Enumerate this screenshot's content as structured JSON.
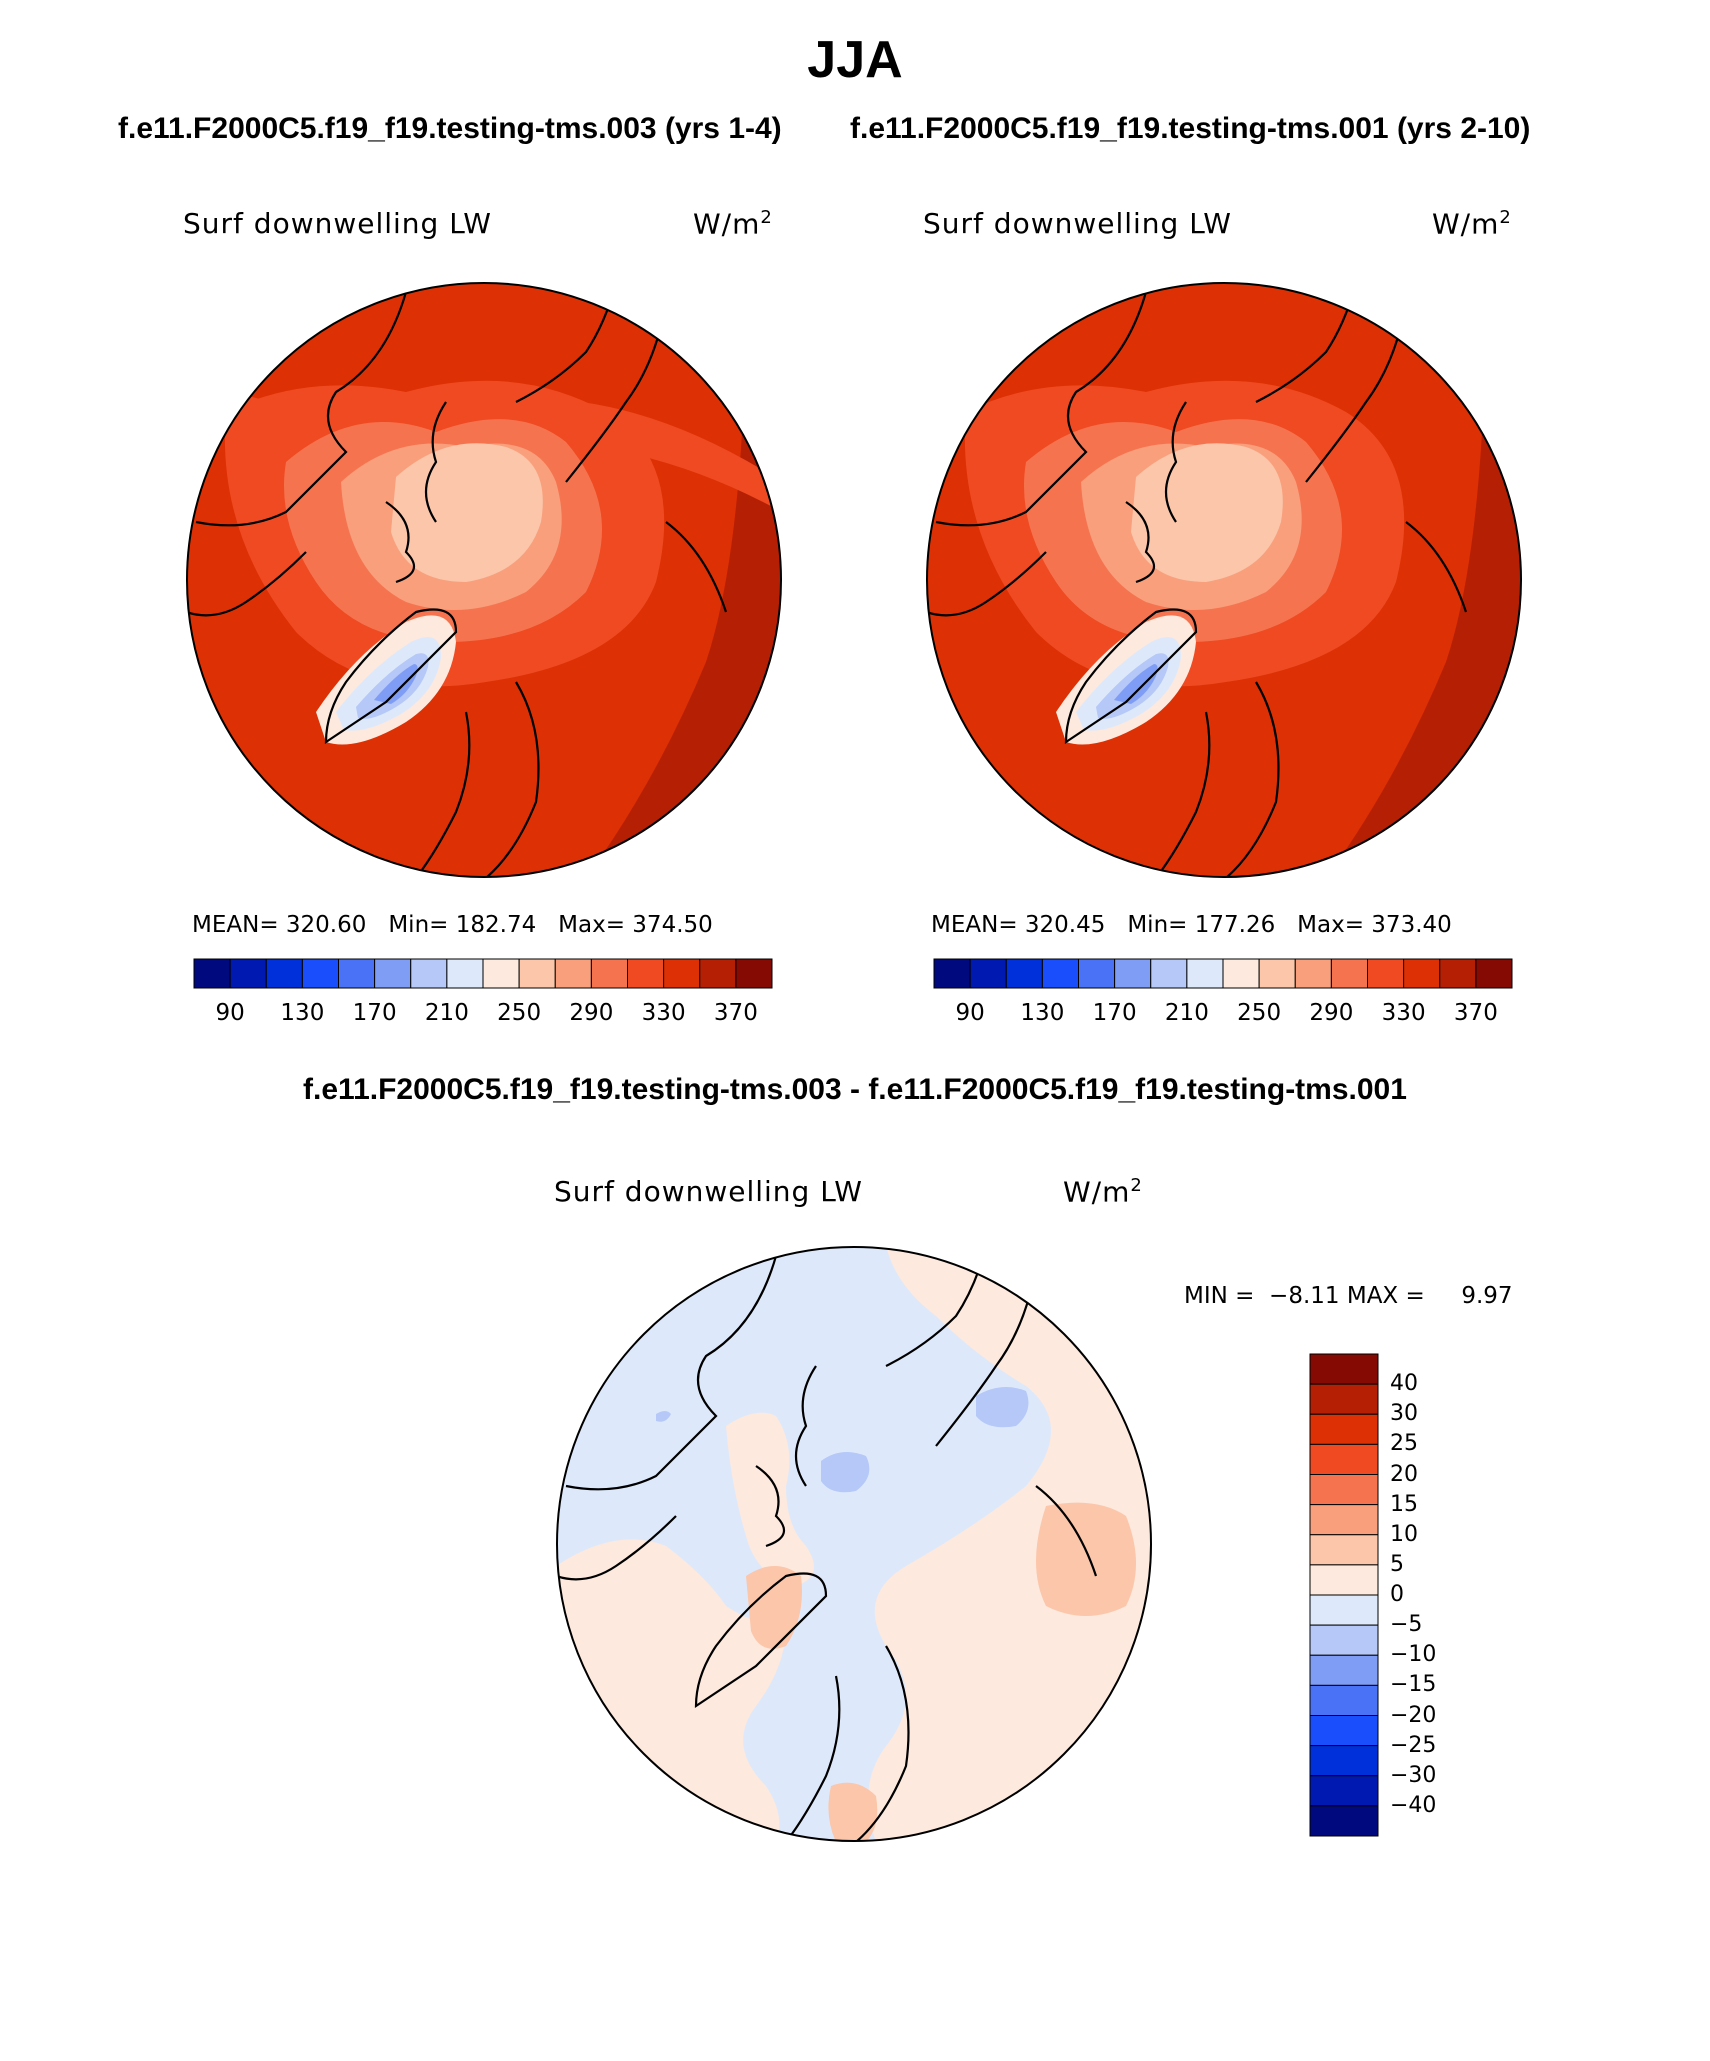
{
  "title": "JJA",
  "panels": [
    {
      "case_title": "f.e11.F2000C5.f19_f19.testing-tms.003 (yrs 1-4)",
      "variable": "Surf downwelling LW",
      "units_base": "W/m",
      "units_exp": "2",
      "stats": {
        "mean_label": "MEAN=",
        "mean": "320.60",
        "min_label": "Min=",
        "min": "182.74",
        "max_label": "Max=",
        "max": "374.50"
      }
    },
    {
      "case_title": "f.e11.F2000C5.f19_f19.testing-tms.001 (yrs 2-10)",
      "variable": "Surf downwelling LW",
      "units_base": "W/m",
      "units_exp": "2",
      "stats": {
        "mean_label": "MEAN=",
        "mean": "320.45",
        "min_label": "Min=",
        "min": "177.26",
        "max_label": "Max=",
        "max": "373.40"
      }
    }
  ],
  "colorbar": {
    "colors": [
      "#000a7e",
      "#0019b0",
      "#0030d9",
      "#1a4dfb",
      "#4a72f7",
      "#7f9df5",
      "#b5c8f8",
      "#dde9fb",
      "#fde9dd",
      "#fbc6aa",
      "#f99f7c",
      "#f5744f",
      "#ef4a22",
      "#dd3004",
      "#b51f04",
      "#860a04"
    ],
    "ticks": [
      "90",
      "130",
      "170",
      "210",
      "250",
      "290",
      "330",
      "370"
    ]
  },
  "diff": {
    "title": "f.e11.F2000C5.f19_f19.testing-tms.003 - f.e11.F2000C5.f19_f19.testing-tms.001",
    "variable": "Surf downwelling LW",
    "units_base": "W/m",
    "units_exp": "2",
    "min_label": "MIN =",
    "min": "−8.11",
    "max_label": "MAX =",
    "max": "9.97",
    "colorbar": {
      "colors": [
        "#860a04",
        "#b51f04",
        "#dd3004",
        "#ef4a22",
        "#f5744f",
        "#f99f7c",
        "#fbc6aa",
        "#fde9dd",
        "#dde9fb",
        "#b5c8f8",
        "#7f9df5",
        "#4a72f7",
        "#1a4dfb",
        "#0030d9",
        "#0019b0",
        "#000a7e"
      ],
      "ticks": [
        "40",
        "30",
        "25",
        "20",
        "15",
        "10",
        "5",
        "0",
        "−5",
        "−10",
        "−15",
        "−20",
        "−25",
        "−30",
        "−40"
      ]
    }
  }
}
